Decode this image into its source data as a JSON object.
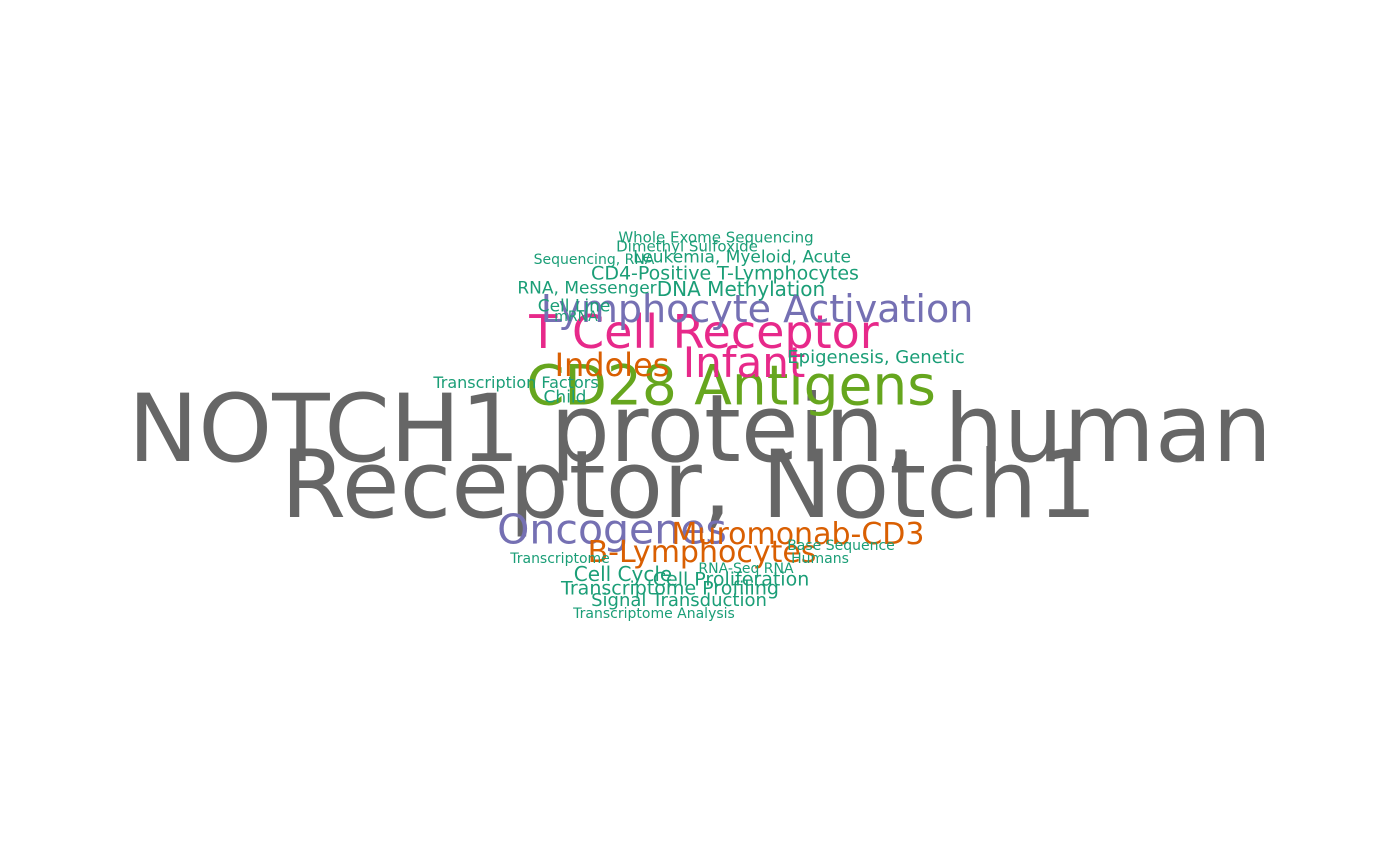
{
  "palette": {
    "gray": "#666666",
    "green": "#66a61e",
    "magenta": "#e7298a",
    "purple": "#7570b3",
    "orange": "#d95f02",
    "teal": "#1b9e77"
  },
  "words": [
    {
      "text": "NOTCH1 protein, human",
      "color": "gray"
    },
    {
      "text": "Receptor, Notch1",
      "color": "gray"
    },
    {
      "text": "CD28 Antigens",
      "color": "green"
    },
    {
      "text": "T Cell Receptor",
      "color": "magenta"
    },
    {
      "text": "Lymphocyte Activation",
      "color": "purple"
    },
    {
      "text": "Infant",
      "color": "magenta"
    },
    {
      "text": "Oncogenes",
      "color": "purple"
    },
    {
      "text": "Indoles",
      "color": "orange"
    },
    {
      "text": "Muromonab-CD3",
      "color": "orange"
    },
    {
      "text": "B-Lymphocytes",
      "color": "orange"
    },
    {
      "text": "CD4-Positive T-Lymphocytes",
      "color": "teal"
    },
    {
      "text": "DNA Methylation",
      "color": "teal"
    },
    {
      "text": "Leukemia, Myeloid, Acute",
      "color": "teal"
    },
    {
      "text": "Epigenesis, Genetic",
      "color": "teal"
    },
    {
      "text": "Cell Cycle",
      "color": "teal"
    },
    {
      "text": "Cell Proliferation",
      "color": "teal"
    },
    {
      "text": "Transcriptome Profiling",
      "color": "teal"
    },
    {
      "text": "Signal Transduction",
      "color": "teal"
    },
    {
      "text": "RNA, Messenger",
      "color": "teal"
    },
    {
      "text": "Transcription Factors",
      "color": "teal"
    },
    {
      "text": "Child",
      "color": "teal"
    },
    {
      "text": "Cell Line",
      "color": "teal"
    },
    {
      "text": "Whole Exome Sequencing",
      "color": "teal"
    },
    {
      "text": "Dimethyl Sulfoxide",
      "color": "teal"
    },
    {
      "text": "Sequencing, RNA",
      "color": "teal"
    },
    {
      "text": "Base Sequence",
      "color": "teal"
    },
    {
      "text": "Humans",
      "color": "teal"
    },
    {
      "text": "Transcriptome",
      "color": "teal"
    },
    {
      "text": "RNA-Seq RNA",
      "color": "teal"
    },
    {
      "text": "Transcriptome Analysis",
      "color": "teal"
    },
    {
      "text": "mRNA",
      "color": "teal"
    }
  ]
}
